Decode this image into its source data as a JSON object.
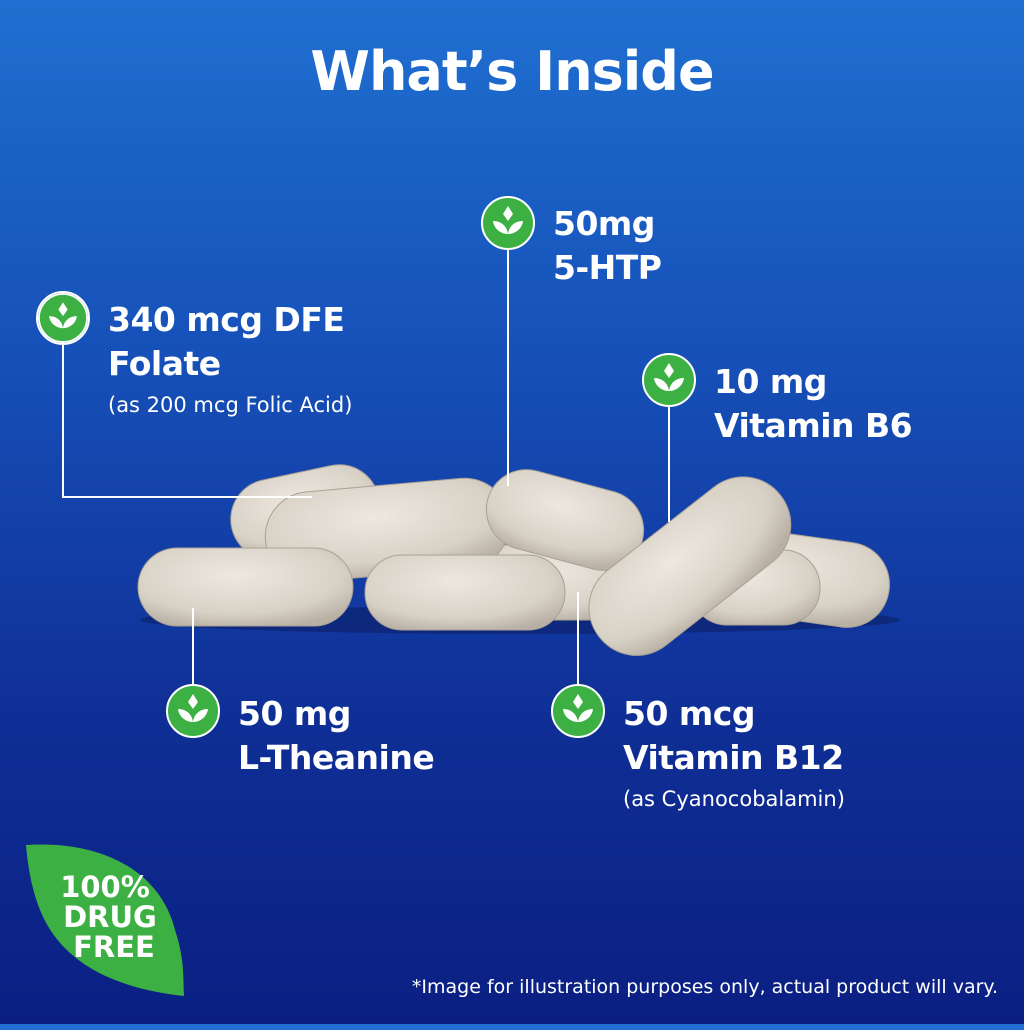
{
  "title": "What’s Inside",
  "colors": {
    "accent_green": "#3db043",
    "background_top": "#1f6fd1",
    "background_bottom": "#0b1f82"
  },
  "ingredients": [
    {
      "amount": "340 mcg DFE",
      "name": "Folate",
      "note": "(as 200 mcg Folic Acid)",
      "icon": "leaf-sprout-icon"
    },
    {
      "amount": "50mg",
      "name": "5-HTP",
      "icon": "leaf-sprout-icon"
    },
    {
      "amount": "10 mg",
      "name": "Vitamin B6",
      "icon": "leaf-sprout-icon"
    },
    {
      "amount": "50 mg",
      "name": "L-Theanine",
      "icon": "leaf-sprout-icon"
    },
    {
      "amount": "50 mcg",
      "name": "Vitamin B12",
      "note": "(as Cyanocobalamin)",
      "icon": "leaf-sprout-icon"
    }
  ],
  "badge": {
    "line1": "100%",
    "line2": "DRUG",
    "line3": "FREE"
  },
  "disclaimer": "*Image for illustration purposes only, actual product will vary."
}
